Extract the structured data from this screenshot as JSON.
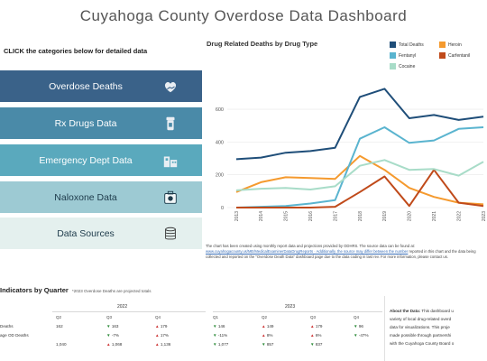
{
  "title": "Cuyahoga County Overdose Data Dashboard",
  "instruction": "CLICK the categories below for detailed data",
  "nav": [
    {
      "label": "Overdose Deaths",
      "icon": "heart-hand-icon"
    },
    {
      "label": "Rx Drugs Data",
      "icon": "pill-bottle-icon"
    },
    {
      "label": "Emergency Dept Data",
      "icon": "hospital-icon"
    },
    {
      "label": "Naloxone Data",
      "icon": "naloxone-kit-icon"
    },
    {
      "label": "Data Sources",
      "icon": "database-icon"
    }
  ],
  "colors": {
    "total": "#1f4e79",
    "fentanyl": "#5ab4cf",
    "cocaine": "#a8dcc8",
    "heroin": "#f59a2e",
    "carfentanil": "#c04a1a"
  },
  "chart_data": {
    "type": "line",
    "title": "Drug Related Deaths by Drug Type",
    "x": [
      "2013",
      "2014",
      "2015",
      "2016",
      "2017",
      "2018",
      "2019",
      "2020",
      "2021",
      "2022",
      "2023"
    ],
    "ylim": [
      0,
      760
    ],
    "yticks": [
      "0",
      "200",
      "400",
      "600"
    ],
    "series": [
      {
        "name": "Total Deaths",
        "color": "#1f4e79",
        "values": [
          295,
          305,
          335,
          345,
          365,
          675,
          725,
          545,
          565,
          535,
          555
        ]
      },
      {
        "name": "Heroin",
        "color": "#f59a2e",
        "values": [
          95,
          155,
          185,
          180,
          175,
          315,
          230,
          120,
          65,
          30,
          20
        ]
      },
      {
        "name": "Fentanyl",
        "color": "#5ab4cf",
        "values": [
          0,
          5,
          10,
          25,
          45,
          420,
          490,
          395,
          410,
          480,
          490
        ]
      },
      {
        "name": "Carfentanil",
        "color": "#c04a1a",
        "values": [
          0,
          0,
          0,
          0,
          5,
          95,
          190,
          10,
          230,
          30,
          10
        ]
      },
      {
        "name": "Cocaine",
        "color": "#a8dcc8",
        "values": [
          105,
          115,
          120,
          110,
          130,
          255,
          290,
          230,
          235,
          195,
          280
        ]
      }
    ]
  },
  "note": {
    "text1": "The chart has been created using monthly report data and projections provided by ODHRS. The source data can be found at:",
    "link": "www.cuyahogacounty.us/ME/MedicalExaminerDataDrugReports · Additionally, the source may differ between the number",
    "text2": "reported in this chart and the data being collected and reported on the \"Overdose Death Data\" dashboard page due to the data",
    "text3": "coding in last rev. For more information, please contact us."
  },
  "indicators": {
    "title": "Indicators by Quarter",
    "subtitle": "*2023 Overdose Deaths are projected totals",
    "years": [
      "2022",
      "2023"
    ],
    "quarters": [
      "Q2",
      "Q3",
      "Q4",
      "Q1",
      "Q2",
      "Q3",
      "Q4"
    ],
    "rows": [
      {
        "label": "Deaths",
        "cells": [
          {
            "v": "162",
            "d": ""
          },
          {
            "v": "163",
            "d": "dn"
          },
          {
            "v": "179",
            "d": "up"
          },
          {
            "v": "146",
            "d": "dn"
          },
          {
            "v": "149",
            "d": "up"
          },
          {
            "v": "179",
            "d": "up"
          },
          {
            "v": "96",
            "d": "dn"
          }
        ]
      },
      {
        "label": "age OD Deaths",
        "cells": [
          {
            "v": "",
            "d": ""
          },
          {
            "v": "-7%",
            "d": "dn"
          },
          {
            "v": "17%",
            "d": "up"
          },
          {
            "v": "-11%",
            "d": "dn"
          },
          {
            "v": "8%",
            "d": "up"
          },
          {
            "v": "6%",
            "d": "up"
          },
          {
            "v": "-47%",
            "d": "dn"
          }
        ]
      },
      {
        "label": "",
        "cells": [
          {
            "v": "1,040",
            "d": ""
          },
          {
            "v": "1,068",
            "d": "up"
          },
          {
            "v": "1,136",
            "d": "up"
          },
          {
            "v": "1,077",
            "d": "dn"
          },
          {
            "v": "857",
            "d": "dn"
          },
          {
            "v": "837",
            "d": "dn"
          },
          {
            "v": "",
            "d": ""
          }
        ]
      }
    ]
  },
  "about": {
    "label": "About the Data:",
    "lines": [
      "This dashboard u",
      "variety of local drug-related overd",
      "data for visualizations. This proje",
      "made possible through partnershi",
      "with the Cuyahoga County Board o"
    ]
  }
}
